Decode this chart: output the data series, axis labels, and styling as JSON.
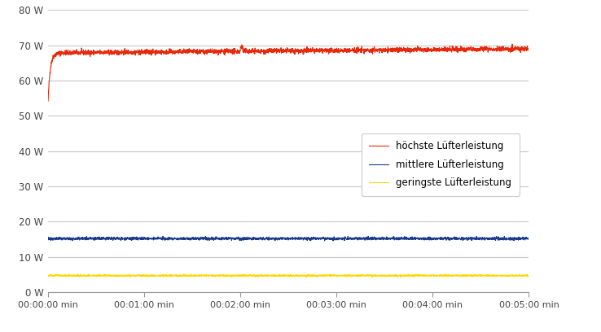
{
  "xlim": [
    0,
    300
  ],
  "ylim": [
    0,
    80
  ],
  "yticks": [
    0,
    10,
    20,
    30,
    40,
    50,
    60,
    70,
    80
  ],
  "xtick_positions": [
    0,
    60,
    120,
    180,
    240,
    300
  ],
  "xtick_labels": [
    "00:00:00 min",
    "00:01:00 min",
    "00:02:00 min",
    "00:03:00 min",
    "00:04:00 min",
    "00:05:00 min"
  ],
  "series": {
    "hoechste": {
      "label": "höchste Lüfterleistung",
      "color": "#e8280a",
      "base_value": 67.8,
      "start_value": 54.0,
      "ramp_end": 8,
      "noise_std": 0.35
    },
    "mittlere": {
      "label": "mittlere Lüfterleistung",
      "color": "#1a3a8a",
      "base_value": 15.2,
      "noise_std": 0.2
    },
    "geringste": {
      "label": "geringste Lüfterleistung",
      "color": "#ffd700",
      "base_value": 4.7,
      "noise_std": 0.12
    }
  },
  "background_color": "#ffffff",
  "grid_color": "#c8c8c8",
  "line_width": 0.8,
  "figsize": [
    7.38,
    4.08
  ],
  "dpi": 100
}
